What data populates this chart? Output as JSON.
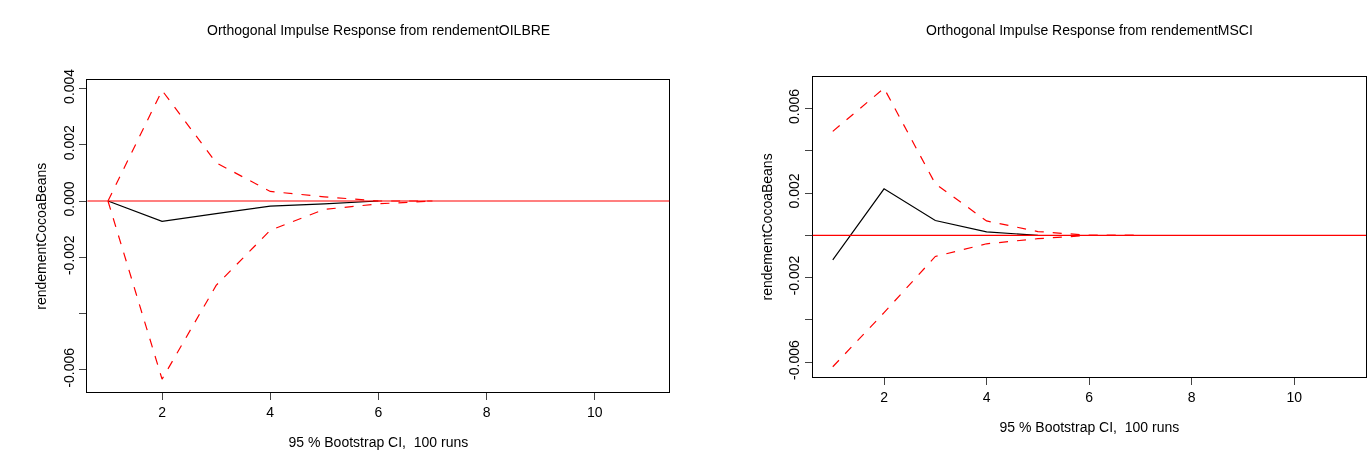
{
  "chart_data": [
    {
      "type": "line",
      "title": "Orthogonal Impulse Response from rendementOILBRE",
      "xlabel": "95 % Bootstrap CI,  100 runs",
      "ylabel": "rendementCocoaBeans",
      "series": [
        {
          "color": "#000000",
          "line_style": "solid",
          "x": [
            1,
            2,
            3,
            4,
            5,
            6
          ],
          "values": [
            0,
            -0.00072,
            -0.00045,
            -0.00018,
            -0.0001,
            0
          ]
        },
        {
          "color": "#ff0000",
          "line_style": "dashed",
          "x": [
            1,
            2,
            3,
            4,
            5,
            6,
            7
          ],
          "values": [
            0,
            0.00393,
            0.00136,
            0.00034,
            0.00015,
            0,
            0
          ]
        },
        {
          "color": "#ff0000",
          "line_style": "dashed",
          "x": [
            1,
            2,
            3,
            4,
            5,
            6,
            7
          ],
          "values": [
            0,
            -0.00633,
            -0.003,
            -0.00104,
            -0.0003,
            -0.0001,
            0
          ]
        }
      ],
      "ref_lines": [
        {
          "axis": "y",
          "value": 0,
          "color": "#ff0000",
          "line_style": "solid"
        }
      ],
      "xlim": [
        0.62,
        11.38
      ],
      "xticks": [
        2,
        4,
        6,
        8,
        10
      ],
      "ylim": [
        -0.0068,
        0.0043
      ],
      "yticks": [
        {
          "value": 0.004,
          "label": "0.004"
        },
        {
          "value": 0.002,
          "label": "0.002"
        },
        {
          "value": 0,
          "label": "0.000"
        },
        {
          "value": -0.002,
          "label": "-0.002"
        },
        {
          "value": -0.004,
          "label": null
        },
        {
          "value": -0.006,
          "label": "-0.006"
        }
      ],
      "marker": "none"
    },
    {
      "type": "line",
      "title": "Orthogonal Impulse Response from rendementMSCI",
      "xlabel": "95 % Bootstrap CI,  100 runs",
      "ylabel": "rendementCocoaBeans",
      "series": [
        {
          "color": "#000000",
          "line_style": "solid",
          "x": [
            1,
            2,
            3,
            4,
            5
          ],
          "values": [
            -0.00116,
            0.0022,
            0.0007,
            0.00016,
            0
          ]
        },
        {
          "color": "#ff0000",
          "line_style": "dashed",
          "x": [
            1,
            2,
            3,
            4,
            5,
            6,
            7
          ],
          "values": [
            0.00492,
            0.00696,
            0.00244,
            0.00068,
            0.00018,
            0,
            0
          ]
        },
        {
          "color": "#ff0000",
          "line_style": "dashed",
          "x": [
            1,
            2,
            3,
            4,
            5,
            6,
            7
          ],
          "values": [
            -0.00622,
            -0.00366,
            -0.001,
            -0.0004,
            -0.00016,
            0,
            0
          ]
        }
      ],
      "ref_lines": [
        {
          "axis": "y",
          "value": 0,
          "color": "#ff0000",
          "line_style": "solid"
        }
      ],
      "xlim": [
        0.61,
        11.4
      ],
      "xticks": [
        2,
        4,
        6,
        8,
        10
      ],
      "ylim": [
        -0.0067,
        0.0075
      ],
      "yticks": [
        {
          "value": 0.006,
          "label": "0.006"
        },
        {
          "value": 0.004,
          "label": null
        },
        {
          "value": 0.002,
          "label": "0.002"
        },
        {
          "value": 0,
          "label": null
        },
        {
          "value": -0.002,
          "label": "-0.002"
        },
        {
          "value": -0.004,
          "label": null
        },
        {
          "value": -0.006,
          "label": "-0.006"
        }
      ],
      "marker": "none"
    }
  ]
}
